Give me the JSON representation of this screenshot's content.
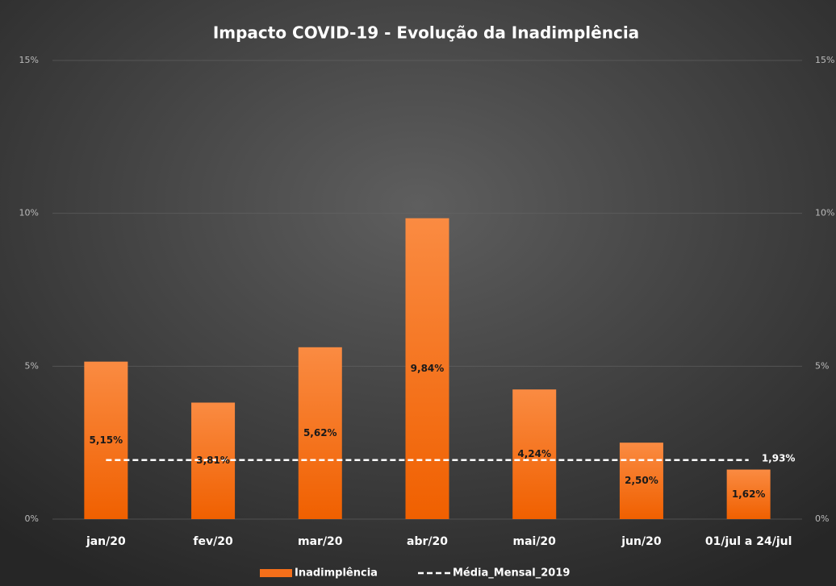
{
  "chart_data": {
    "type": "bar",
    "title": "Impacto COVID-19 - Evolução da Inadimplência",
    "categories": [
      "jan/20",
      "fev/20",
      "mar/20",
      "abr/20",
      "mai/20",
      "jun/20",
      "01/jul a 24/jul"
    ],
    "series": [
      {
        "name": "Inadimplência",
        "type": "bar",
        "color": "#f56f1a",
        "values": [
          5.15,
          3.81,
          5.62,
          9.84,
          4.24,
          2.5,
          1.62
        ],
        "value_labels": [
          "5,15%",
          "3,81%",
          "5,62%",
          "9,84%",
          "4,24%",
          "2,50%",
          "1,62%"
        ]
      },
      {
        "name": "Média_Mensal_2019",
        "type": "line",
        "color": "#ffffff",
        "dashed": true,
        "values": [
          1.93,
          1.93,
          1.93,
          1.93,
          1.93,
          1.93,
          1.93
        ],
        "value_labels": [
          null,
          null,
          null,
          null,
          null,
          null,
          "1,93%"
        ]
      }
    ],
    "ylim": [
      0,
      15
    ],
    "yticks": [
      {
        "value": 0,
        "label": "0%"
      },
      {
        "value": 5,
        "label": "5%"
      },
      {
        "value": 10,
        "label": "10%"
      },
      {
        "value": 15,
        "label": "15%"
      }
    ],
    "y2lim": [
      0,
      15
    ],
    "y2ticks": [
      {
        "value": 0,
        "label": "0%"
      },
      {
        "value": 5,
        "label": "5%"
      },
      {
        "value": 10,
        "label": "10%"
      },
      {
        "value": 15,
        "label": "15%"
      }
    ],
    "grid": true,
    "legend": "bottom"
  }
}
